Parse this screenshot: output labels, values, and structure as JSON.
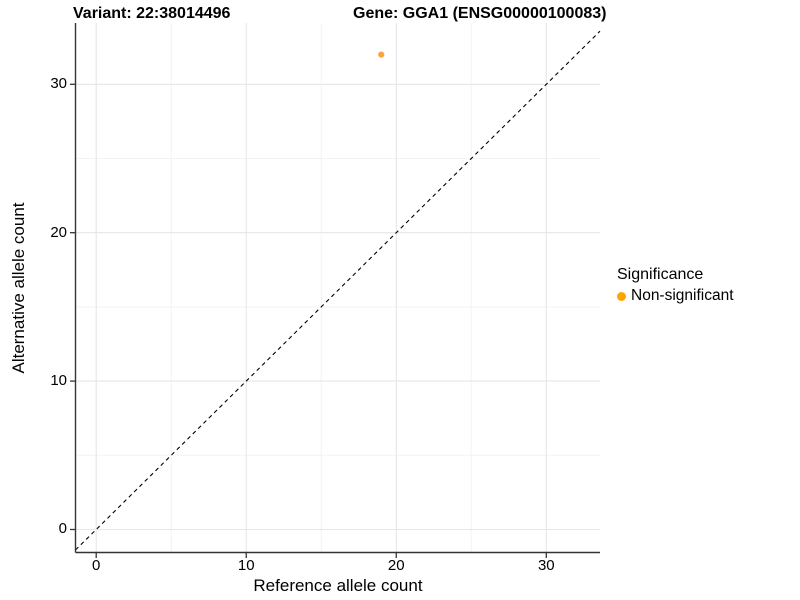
{
  "chart_data": {
    "type": "scatter",
    "title_left": "Variant: 22:38014496",
    "title_right": "Gene: GGA1 (ENSG00000100083)",
    "xlabel": "Reference allele count",
    "ylabel": "Alternative allele count",
    "xlim": [
      -1.38,
      33.58
    ],
    "ylim": [
      -1.55,
      34.13
    ],
    "x_ticks": [
      0,
      10,
      20,
      30
    ],
    "y_ticks": [
      0,
      10,
      20,
      30
    ],
    "x_minor_ticks": [
      5,
      15,
      25
    ],
    "y_minor_ticks": [
      5,
      15,
      25
    ],
    "grid": "on",
    "points": [
      {
        "x": 19,
        "y": 32,
        "series": "Non-significant"
      }
    ],
    "identity_line": {
      "slope": 1,
      "intercept": 0,
      "style": "dashed"
    },
    "legend": {
      "title": "Significance",
      "position": "right",
      "entries": [
        {
          "label": "Non-significant",
          "color": "#FFA500"
        }
      ]
    },
    "colors": {
      "point": "#FBA43C",
      "grid_major": "#E6E6E6",
      "grid_minor": "#F3F3F3",
      "axis_line": "#333333",
      "tick_mark": "#333333",
      "identity_line": "#000000",
      "background": "#FFFFFF"
    }
  }
}
